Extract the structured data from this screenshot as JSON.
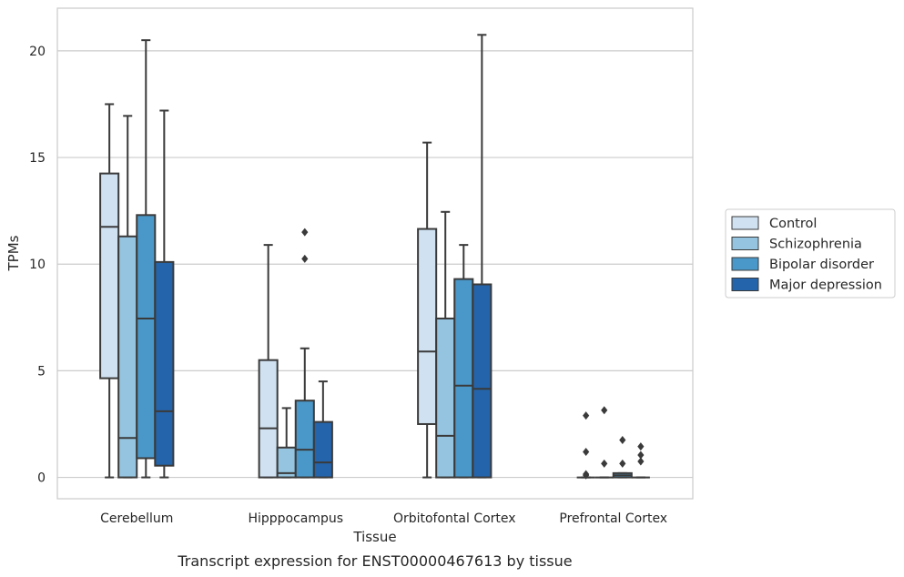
{
  "caption": "Transcript expression for ENST00000467613 by tissue",
  "chart_data": {
    "type": "box",
    "xlabel": "Tissue",
    "ylabel": "TPMs",
    "ylim": [
      -1,
      22
    ],
    "yticks": [
      0,
      5,
      10,
      15,
      20
    ],
    "grid": "horizontal",
    "legend_position": "right",
    "categories": [
      "Cerebellum",
      "Hipppocampus",
      "Orbitofontal Cortex",
      "Prefrontal Cortex"
    ],
    "series": [
      {
        "name": "Control",
        "color": "#d0e1f1",
        "boxes": [
          {
            "whisker_low": 0,
            "q1": 4.65,
            "median": 11.75,
            "q3": 14.25,
            "whisker_high": 17.5,
            "outliers": []
          },
          {
            "whisker_low": 0,
            "q1": 0,
            "median": 2.3,
            "q3": 5.5,
            "whisker_high": 10.9,
            "outliers": []
          },
          {
            "whisker_low": 0,
            "q1": 2.5,
            "median": 5.9,
            "q3": 11.65,
            "whisker_high": 15.7,
            "outliers": []
          },
          {
            "whisker_low": 0,
            "q1": 0,
            "median": 0,
            "q3": 0,
            "whisker_high": 0,
            "outliers": [
              2.9,
              1.2,
              0.15,
              0.1
            ]
          }
        ]
      },
      {
        "name": "Schizophrenia",
        "color": "#94c4df",
        "boxes": [
          {
            "whisker_low": 0,
            "q1": 0,
            "median": 1.85,
            "q3": 11.3,
            "whisker_high": 16.95,
            "outliers": []
          },
          {
            "whisker_low": 0,
            "q1": 0,
            "median": 0.2,
            "q3": 1.4,
            "whisker_high": 3.25,
            "outliers": []
          },
          {
            "whisker_low": 0,
            "q1": 0,
            "median": 1.95,
            "q3": 7.45,
            "whisker_high": 12.45,
            "outliers": []
          },
          {
            "whisker_low": 0,
            "q1": 0,
            "median": 0,
            "q3": 0,
            "whisker_high": 0,
            "outliers": [
              3.15,
              0.65
            ]
          }
        ]
      },
      {
        "name": "Bipolar disorder",
        "color": "#4a98c9",
        "boxes": [
          {
            "whisker_low": 0,
            "q1": 0.9,
            "median": 7.45,
            "q3": 12.3,
            "whisker_high": 20.5,
            "outliers": []
          },
          {
            "whisker_low": 0,
            "q1": 0,
            "median": 1.3,
            "q3": 3.6,
            "whisker_high": 6.05,
            "outliers": [
              11.5,
              10.25
            ]
          },
          {
            "whisker_low": 0,
            "q1": 0,
            "median": 4.3,
            "q3": 9.3,
            "whisker_high": 10.9,
            "outliers": []
          },
          {
            "whisker_low": 0,
            "q1": 0,
            "median": 0.1,
            "q3": 0.2,
            "whisker_high": 0.2,
            "outliers": [
              1.75,
              0.65
            ]
          }
        ]
      },
      {
        "name": "Major depression",
        "color": "#2464ab",
        "boxes": [
          {
            "whisker_low": 0,
            "q1": 0.55,
            "median": 3.1,
            "q3": 10.1,
            "whisker_high": 17.2,
            "outliers": []
          },
          {
            "whisker_low": 0,
            "q1": 0,
            "median": 0.7,
            "q3": 2.6,
            "whisker_high": 4.5,
            "outliers": []
          },
          {
            "whisker_low": 0,
            "q1": 0,
            "median": 4.15,
            "q3": 9.05,
            "whisker_high": 20.75,
            "outliers": []
          },
          {
            "whisker_low": 0,
            "q1": 0,
            "median": 0,
            "q3": 0,
            "whisker_high": 0,
            "outliers": [
              1.45,
              1.05,
              0.75
            ]
          }
        ]
      }
    ]
  }
}
